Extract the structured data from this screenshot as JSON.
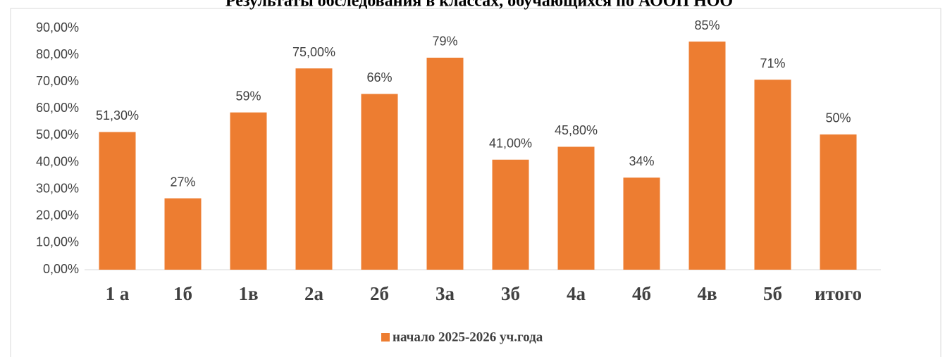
{
  "chart_data": {
    "type": "bar",
    "title": "Результаты обследования в классах, обучающихся по АООП НОО",
    "categories": [
      "1 а",
      "1б",
      "1в",
      "2а",
      "2б",
      "3а",
      "3б",
      "4а",
      "4б",
      "4в",
      "5б",
      "итого"
    ],
    "series": [
      {
        "name": "начало 2025-2026 уч.года",
        "color": "#ed7d31",
        "values": [
          51.3,
          26.6,
          58.6,
          75,
          65.5,
          79,
          41,
          45.8,
          34.3,
          85,
          70.8,
          50.4
        ],
        "value_labels": [
          "51,30%",
          "27%",
          "59%",
          "75,00%",
          "66%",
          "79%",
          "41,00%",
          "45,80%",
          "34%",
          "85%",
          "71%",
          "50%"
        ]
      }
    ],
    "ylim": [
      0,
      90
    ],
    "yticks": [
      {
        "value": 0,
        "label": "0,00%"
      },
      {
        "value": 10,
        "label": "10,00%"
      },
      {
        "value": 20,
        "label": "20,00%"
      },
      {
        "value": 30,
        "label": "30,00%"
      },
      {
        "value": 40,
        "label": "40,00%"
      },
      {
        "value": 50,
        "label": "50,00%"
      },
      {
        "value": 60,
        "label": "60,00%"
      },
      {
        "value": 70,
        "label": "70,00%"
      },
      {
        "value": 80,
        "label": "80,00%"
      },
      {
        "value": 90,
        "label": "90,00%"
      }
    ],
    "grid": false,
    "legend": "bottom"
  }
}
